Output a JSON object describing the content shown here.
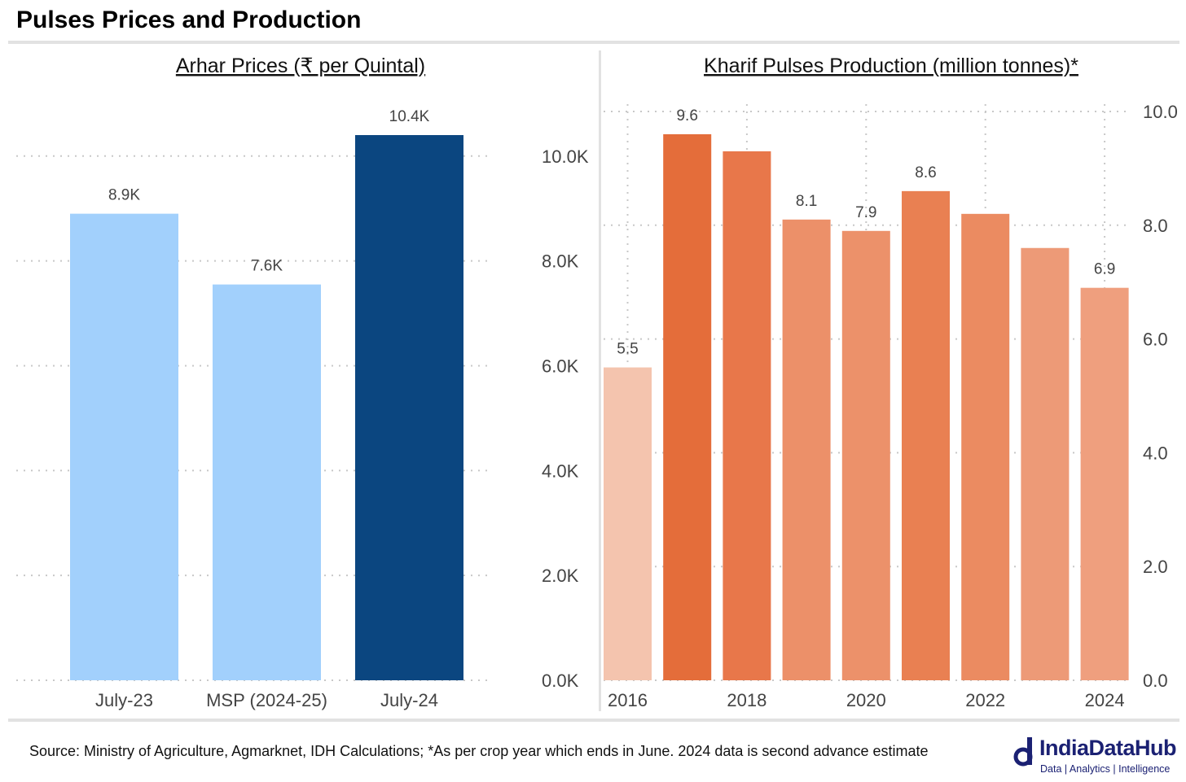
{
  "page": {
    "title": "Pulses Prices and Production",
    "source": "Source: Ministry of Agriculture, Agmarknet, IDH Calculations; *As per crop year which ends in June. 2024 data is second advance estimate",
    "logo": {
      "name": "IndiaDataHub",
      "tagline": "Data | Analytics | Intelligence",
      "color": "#1b2173"
    }
  },
  "chart_data": [
    {
      "type": "bar",
      "title": "Arhar Prices (₹ per Quintal)",
      "categories": [
        "July-23",
        "MSP (2024-25)",
        "July-24"
      ],
      "values": [
        8900,
        7550,
        10400
      ],
      "data_labels": [
        "8.9K",
        "7.6K",
        "10.4K"
      ],
      "colors": [
        "#a2d0fc",
        "#a2d0fc",
        "#0b4680"
      ],
      "ylim": [
        0,
        10400
      ],
      "yticks": [
        0,
        2000,
        4000,
        6000,
        8000,
        10000
      ],
      "ytick_labels": [
        "0.0K",
        "2.0K",
        "4.0K",
        "6.0K",
        "8.0K",
        "10.0K"
      ],
      "y_axis_side": "right",
      "grid": "horizontal-dotted",
      "xlabel": "",
      "ylabel": ""
    },
    {
      "type": "bar",
      "title": "Kharif Pulses Production (million tonnes)*",
      "categories": [
        "2016",
        "2017",
        "2018",
        "2019",
        "2020",
        "2021",
        "2022",
        "2023",
        "2024"
      ],
      "values": [
        5.5,
        9.6,
        9.3,
        8.1,
        7.9,
        8.6,
        8.2,
        7.6,
        6.9
      ],
      "data_labels": [
        "5.5",
        "9.6",
        "",
        "8.1",
        "7.9",
        "8.6",
        "",
        "",
        "6.9"
      ],
      "colors": [
        "#f4c4ae",
        "#e46d3a",
        "#e8774a",
        "#ec9069",
        "#ec916a",
        "#e98052",
        "#eb8b61",
        "#ed9a77",
        "#ef9f7e"
      ],
      "xtick_labels": [
        "2016",
        "2018",
        "2020",
        "2022",
        "2024"
      ],
      "ylim": [
        0,
        10.0
      ],
      "yticks": [
        0,
        2,
        4,
        6,
        8,
        10
      ],
      "ytick_labels": [
        "0.0",
        "2.0",
        "4.0",
        "6.0",
        "8.0",
        "10.0"
      ],
      "y_axis_side": "right",
      "grid": "both-dotted",
      "xlabel": "",
      "ylabel": ""
    }
  ]
}
